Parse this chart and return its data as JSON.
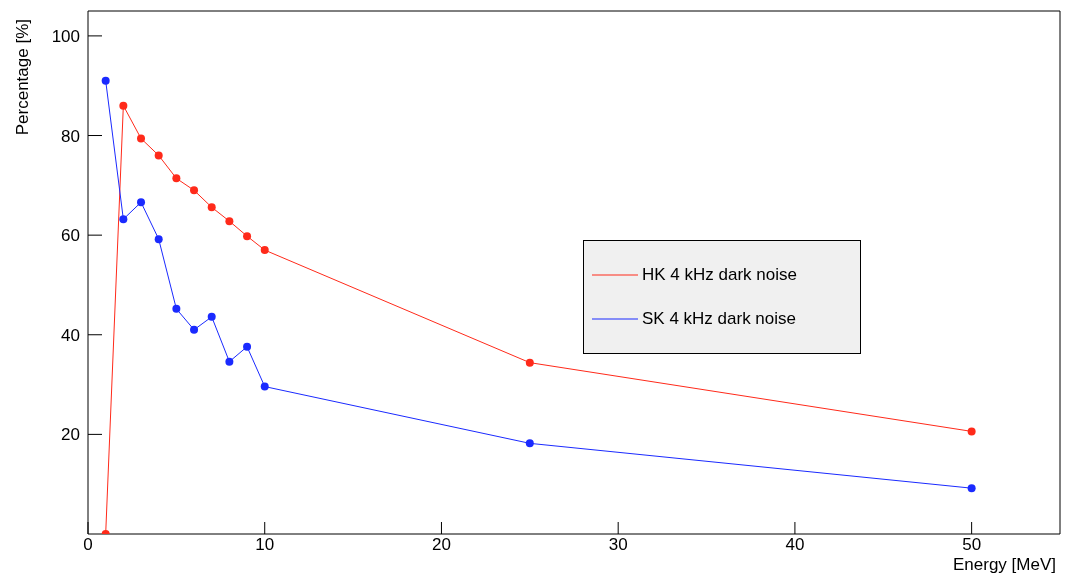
{
  "chart_data": {
    "type": "line",
    "xlabel": "Energy [MeV]",
    "ylabel": "Percentage [%]",
    "xlim": [
      0,
      55
    ],
    "xticks": [
      0,
      10,
      20,
      30,
      40,
      50
    ],
    "ylim": [
      0,
      105
    ],
    "yticks": [
      20,
      40,
      60,
      80,
      100
    ],
    "x": [
      1,
      2,
      3,
      4,
      5,
      6,
      7,
      8,
      9,
      10,
      25,
      50
    ],
    "series": [
      {
        "name": "HK 4 kHz dark noise",
        "color": "#ff2a1a",
        "values": [
          0,
          86,
          79.4,
          76,
          71.4,
          69,
          65.6,
          62.8,
          59.8,
          57,
          34.4,
          20.6
        ]
      },
      {
        "name": "SK 4 kHz dark noise",
        "color": "#1a2aff",
        "values": [
          91,
          63.2,
          66.6,
          59.2,
          45.2,
          41,
          43.6,
          34.6,
          37.6,
          29.6,
          18.2,
          9.2
        ]
      }
    ],
    "marker": "circle",
    "line_style": "solid",
    "grid": false,
    "legend": "right"
  }
}
